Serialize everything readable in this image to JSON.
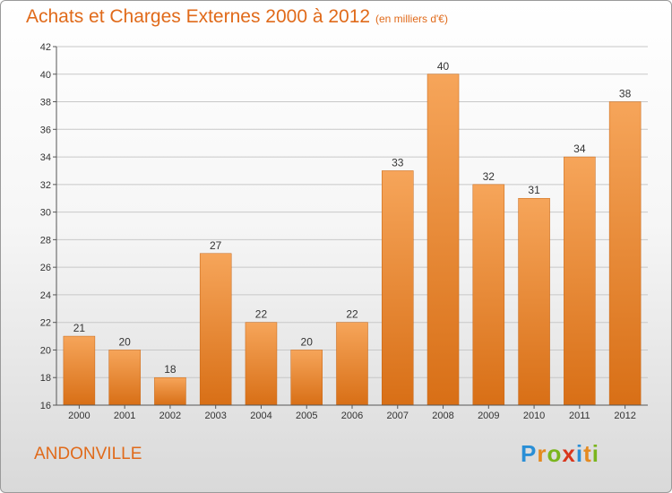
{
  "title": "Achats et Charges Externes 2000 à 2012",
  "unit_note": "(en milliers d'€)",
  "commune": "ANDONVILLE",
  "logo": {
    "letters": [
      "P",
      "r",
      "o",
      "x",
      "i",
      "t",
      "i"
    ],
    "colors": [
      "#2a8fd6",
      "#e58a1f",
      "#7ab51d",
      "#d9361c",
      "#2a8fd6",
      "#e58a1f",
      "#7ab51d"
    ]
  },
  "chart_data": {
    "type": "bar",
    "categories": [
      "2000",
      "2001",
      "2002",
      "2003",
      "2004",
      "2005",
      "2006",
      "2007",
      "2008",
      "2009",
      "2010",
      "2011",
      "2012"
    ],
    "values": [
      21,
      20,
      18,
      27,
      22,
      20,
      22,
      33,
      40,
      32,
      31,
      34,
      38
    ],
    "ylim": [
      16,
      42
    ],
    "yticks": [
      16,
      18,
      20,
      22,
      24,
      26,
      28,
      30,
      32,
      34,
      36,
      38,
      40,
      42
    ],
    "grid": true,
    "bar_color": "#e8842c"
  }
}
